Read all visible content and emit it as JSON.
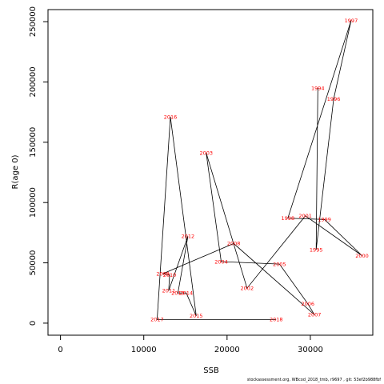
{
  "chart_data": {
    "type": "line",
    "title": "",
    "xlabel": "SSB",
    "ylabel": "R(age 0)",
    "xlim": [
      -1500,
      37500
    ],
    "ylim": [
      -10000,
      260000
    ],
    "xticks": [
      0,
      10000,
      20000,
      30000
    ],
    "yticks": [
      0,
      50000,
      100000,
      150000,
      200000,
      250000
    ],
    "grid": false,
    "legend": "none",
    "line_color": "#000000",
    "label_color": "#ff0000",
    "points": [
      {
        "label": "1994",
        "x": 30900,
        "y": 195000
      },
      {
        "label": "1995",
        "x": 30700,
        "y": 61000
      },
      {
        "label": "1996",
        "x": 32800,
        "y": 186000
      },
      {
        "label": "1997",
        "x": 34900,
        "y": 251000
      },
      {
        "label": "1998",
        "x": 27300,
        "y": 87000
      },
      {
        "label": "1999",
        "x": 31700,
        "y": 86000
      },
      {
        "label": "2000",
        "x": 36200,
        "y": 56000
      },
      {
        "label": "2001",
        "x": 29400,
        "y": 89000
      },
      {
        "label": "2002",
        "x": 22400,
        "y": 29000
      },
      {
        "label": "2003",
        "x": 17500,
        "y": 141000
      },
      {
        "label": "2004",
        "x": 19300,
        "y": 51000
      },
      {
        "label": "2005",
        "x": 26300,
        "y": 49000
      },
      {
        "label": "2006",
        "x": 29700,
        "y": 16000
      },
      {
        "label": "2007",
        "x": 30500,
        "y": 7000
      },
      {
        "label": "2008",
        "x": 20800,
        "y": 66000
      },
      {
        "label": "2009",
        "x": 12300,
        "y": 41000
      },
      {
        "label": "2010",
        "x": 13100,
        "y": 40000
      },
      {
        "label": "2011",
        "x": 13000,
        "y": 27000
      },
      {
        "label": "2012",
        "x": 15300,
        "y": 72000
      },
      {
        "label": "2013",
        "x": 14100,
        "y": 25000
      },
      {
        "label": "2014",
        "x": 15100,
        "y": 25000
      },
      {
        "label": "2015",
        "x": 16300,
        "y": 6000
      },
      {
        "label": "2016",
        "x": 13200,
        "y": 171000
      },
      {
        "label": "2017",
        "x": 11600,
        "y": 3000
      },
      {
        "label": "2018",
        "x": 25900,
        "y": 3000
      }
    ]
  },
  "footer": "stockassessment.org, WBcod_2018_tmb, r9697 , git: 53ef2b988fbf"
}
